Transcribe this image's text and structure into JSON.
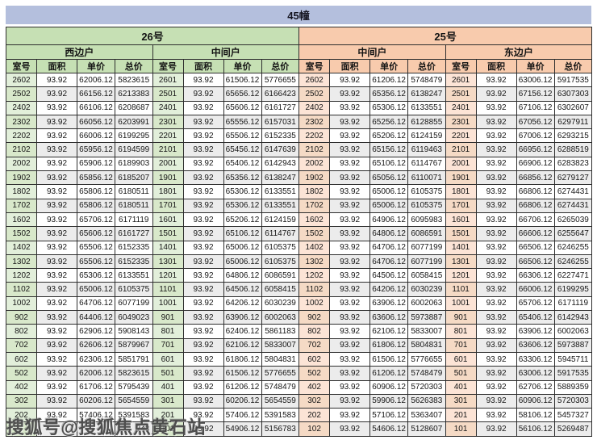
{
  "title": "45幢",
  "watermark": "搜狐号@搜狐焦点黄石站",
  "column_headers": [
    "室号",
    "面积",
    "单价",
    "总价"
  ],
  "colors": {
    "title_bar": "#b4bfdd",
    "green_header": "#c6e0b4",
    "peach_header": "#f8cbad",
    "green_room": "#e2efda",
    "peach_room": "#fce4d6",
    "stripe": "#ececec"
  },
  "buildings": [
    {
      "name": "26号",
      "theme": "green"
    },
    {
      "name": "25号",
      "theme": "peach"
    }
  ],
  "sections": [
    {
      "building": "26号",
      "unit_type": "西边户",
      "theme": "green",
      "obscured_last_row": true,
      "rows": [
        [
          "2602",
          "93.92",
          "62006.12",
          "5823615"
        ],
        [
          "2502",
          "93.92",
          "66156.12",
          "6213383"
        ],
        [
          "2402",
          "93.92",
          "66106.12",
          "6208687"
        ],
        [
          "2302",
          "93.92",
          "66056.12",
          "6203991"
        ],
        [
          "2202",
          "93.92",
          "66006.12",
          "6199295"
        ],
        [
          "2102",
          "93.92",
          "65956.12",
          "6194599"
        ],
        [
          "2002",
          "93.92",
          "65906.12",
          "6189903"
        ],
        [
          "1902",
          "93.92",
          "65856.12",
          "6185207"
        ],
        [
          "1802",
          "93.92",
          "65806.12",
          "6180511"
        ],
        [
          "1702",
          "93.92",
          "65806.12",
          "6180511"
        ],
        [
          "1602",
          "93.92",
          "65706.12",
          "6171119"
        ],
        [
          "1502",
          "93.92",
          "65606.12",
          "6161727"
        ],
        [
          "1402",
          "93.92",
          "65506.12",
          "6152335"
        ],
        [
          "1302",
          "93.92",
          "65506.12",
          "6152335"
        ],
        [
          "1202",
          "93.92",
          "65306.12",
          "6133551"
        ],
        [
          "1102",
          "93.92",
          "65006.12",
          "6105375"
        ],
        [
          "1002",
          "93.92",
          "64706.12",
          "6077199"
        ],
        [
          "902",
          "93.92",
          "64406.12",
          "6049023"
        ],
        [
          "802",
          "93.92",
          "62906.12",
          "5908143"
        ],
        [
          "702",
          "93.92",
          "62606.12",
          "5879967"
        ],
        [
          "602",
          "93.92",
          "62306.12",
          "5851791"
        ],
        [
          "502",
          "93.92",
          "62006.12",
          "5823615"
        ],
        [
          "402",
          "93.92",
          "61706.12",
          "5795439"
        ],
        [
          "302",
          "93.92",
          "60206.12",
          "5654559"
        ],
        [
          "202",
          "93.92",
          "57406.12",
          "5391583"
        ],
        [
          "",
          "",
          "",
          "743"
        ]
      ]
    },
    {
      "building": "26号",
      "unit_type": "中间户",
      "theme": "green",
      "rows": [
        [
          "2601",
          "93.92",
          "61506.12",
          "5776655"
        ],
        [
          "2501",
          "93.92",
          "65656.12",
          "6166423"
        ],
        [
          "2401",
          "93.92",
          "65606.12",
          "6161727"
        ],
        [
          "2301",
          "93.92",
          "65556.12",
          "6157031"
        ],
        [
          "2201",
          "93.92",
          "65506.12",
          "6152335"
        ],
        [
          "2101",
          "93.92",
          "65456.12",
          "6147639"
        ],
        [
          "2001",
          "93.92",
          "65406.12",
          "6142943"
        ],
        [
          "1901",
          "93.92",
          "65356.12",
          "6138247"
        ],
        [
          "1801",
          "93.92",
          "65306.12",
          "6133551"
        ],
        [
          "1701",
          "93.92",
          "65306.12",
          "6133551"
        ],
        [
          "1601",
          "93.92",
          "65206.12",
          "6124159"
        ],
        [
          "1501",
          "93.92",
          "65106.12",
          "6114767"
        ],
        [
          "1401",
          "93.92",
          "65006.12",
          "6105375"
        ],
        [
          "1301",
          "93.92",
          "65006.12",
          "6105375"
        ],
        [
          "1201",
          "93.92",
          "64806.12",
          "6086591"
        ],
        [
          "1101",
          "93.92",
          "64506.12",
          "6058415"
        ],
        [
          "1001",
          "93.92",
          "64206.12",
          "6030239"
        ],
        [
          "901",
          "93.92",
          "63906.12",
          "6002063"
        ],
        [
          "801",
          "93.92",
          "62406.12",
          "5861183"
        ],
        [
          "701",
          "93.92",
          "62106.12",
          "5833007"
        ],
        [
          "601",
          "93.92",
          "61806.12",
          "5804831"
        ],
        [
          "501",
          "93.92",
          "61506.12",
          "5776655"
        ],
        [
          "401",
          "93.92",
          "61206.12",
          "5748479"
        ],
        [
          "301",
          "93.92",
          "60206.12",
          "5654559"
        ],
        [
          "201",
          "93.92",
          "57406.12",
          "5391583"
        ],
        [
          "101",
          "93.92",
          "54906.12",
          "5156783"
        ]
      ]
    },
    {
      "building": "25号",
      "unit_type": "中间户",
      "theme": "peach",
      "rows": [
        [
          "2602",
          "93.92",
          "61206.12",
          "5748479"
        ],
        [
          "2502",
          "93.92",
          "65356.12",
          "6138247"
        ],
        [
          "2402",
          "93.92",
          "65306.12",
          "6133551"
        ],
        [
          "2302",
          "93.92",
          "65256.12",
          "6128855"
        ],
        [
          "2202",
          "93.92",
          "65206.12",
          "6124159"
        ],
        [
          "2102",
          "93.92",
          "65156.12",
          "6119463"
        ],
        [
          "2002",
          "93.92",
          "65106.12",
          "6114767"
        ],
        [
          "1902",
          "93.92",
          "65056.12",
          "6110071"
        ],
        [
          "1802",
          "93.92",
          "65006.12",
          "6105375"
        ],
        [
          "1702",
          "93.92",
          "65006.12",
          "6105375"
        ],
        [
          "1602",
          "93.92",
          "64906.12",
          "6095983"
        ],
        [
          "1502",
          "93.92",
          "64806.12",
          "6086591"
        ],
        [
          "1402",
          "93.92",
          "64706.12",
          "6077199"
        ],
        [
          "1302",
          "93.92",
          "64706.12",
          "6077199"
        ],
        [
          "1202",
          "93.92",
          "64506.12",
          "6058415"
        ],
        [
          "1102",
          "93.92",
          "64206.12",
          "6030239"
        ],
        [
          "1002",
          "93.92",
          "63906.12",
          "6002063"
        ],
        [
          "902",
          "93.92",
          "63606.12",
          "5973887"
        ],
        [
          "802",
          "93.92",
          "62106.12",
          "5833007"
        ],
        [
          "702",
          "93.92",
          "61806.12",
          "5804831"
        ],
        [
          "602",
          "93.92",
          "61506.12",
          "5776655"
        ],
        [
          "502",
          "93.92",
          "61206.12",
          "5748479"
        ],
        [
          "402",
          "93.92",
          "60906.12",
          "5720303"
        ],
        [
          "302",
          "93.92",
          "59906.12",
          "5626383"
        ],
        [
          "202",
          "93.92",
          "57106.12",
          "5363407"
        ],
        [
          "102",
          "93.92",
          "54606.12",
          "5128607"
        ]
      ]
    },
    {
      "building": "25号",
      "unit_type": "东边户",
      "theme": "peach",
      "rows": [
        [
          "2601",
          "93.92",
          "63006.12",
          "5917535"
        ],
        [
          "2501",
          "93.92",
          "67156.12",
          "6307303"
        ],
        [
          "2401",
          "93.92",
          "67106.12",
          "6302607"
        ],
        [
          "2301",
          "93.92",
          "67056.12",
          "6297911"
        ],
        [
          "2201",
          "93.92",
          "67006.12",
          "6293215"
        ],
        [
          "2101",
          "93.92",
          "66956.12",
          "6288519"
        ],
        [
          "2001",
          "93.92",
          "66906.12",
          "6283823"
        ],
        [
          "1901",
          "93.92",
          "66856.12",
          "6279127"
        ],
        [
          "1801",
          "93.92",
          "66806.12",
          "6274431"
        ],
        [
          "1701",
          "93.92",
          "66806.12",
          "6274431"
        ],
        [
          "1601",
          "93.92",
          "66706.12",
          "6265039"
        ],
        [
          "1501",
          "93.92",
          "66606.12",
          "6255647"
        ],
        [
          "1401",
          "93.92",
          "66506.12",
          "6246255"
        ],
        [
          "1301",
          "93.92",
          "66506.12",
          "6246255"
        ],
        [
          "1201",
          "93.92",
          "66306.12",
          "6227471"
        ],
        [
          "1101",
          "93.92",
          "66006.12",
          "6199295"
        ],
        [
          "1001",
          "93.92",
          "65706.12",
          "6171119"
        ],
        [
          "901",
          "93.92",
          "65406.12",
          "6142943"
        ],
        [
          "801",
          "93.92",
          "63906.12",
          "6002063"
        ],
        [
          "701",
          "93.92",
          "63606.12",
          "5973887"
        ],
        [
          "601",
          "93.92",
          "63306.12",
          "5945711"
        ],
        [
          "501",
          "93.92",
          "63006.12",
          "5917535"
        ],
        [
          "401",
          "93.92",
          "62706.12",
          "5889359"
        ],
        [
          "301",
          "93.92",
          "60906.12",
          "5720303"
        ],
        [
          "201",
          "93.92",
          "58106.12",
          "5457327"
        ],
        [
          "101",
          "93.92",
          "56106.12",
          "5269487"
        ]
      ]
    }
  ]
}
